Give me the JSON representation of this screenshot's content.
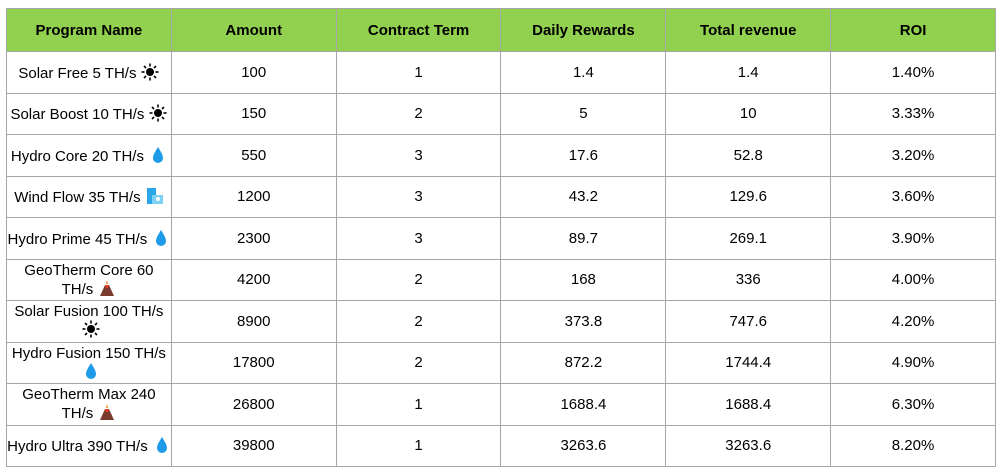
{
  "table": {
    "header": [
      "Program Name",
      "Amount",
      "Contract Term",
      "Daily Rewards",
      "Total revenue",
      "ROI"
    ],
    "rows": [
      [
        "Solar Free 5 TH/s",
        "100",
        "1",
        "1.4",
        "1.4",
        "1.40%"
      ],
      [
        "Solar Boost 10 TH/s",
        "150",
        "2",
        "5",
        "10",
        "3.33%"
      ],
      [
        "Hydro Core 20 TH/s",
        "550",
        "3",
        "17.6",
        "52.8",
        "3.20%"
      ],
      [
        "Wind Flow 35 TH/s",
        "1200",
        "3",
        "43.2",
        "129.6",
        "3.60%"
      ],
      [
        "Hydro Prime 45 TH/s",
        "2300",
        "3",
        "89.7",
        "269.1",
        "3.90%"
      ],
      [
        "GeoTherm Core 60 TH/s",
        "4200",
        "2",
        "168",
        "336",
        "4.00%"
      ],
      [
        "Solar Fusion 100 TH/s",
        "8900",
        "2",
        "373.8",
        "747.6",
        "4.20%"
      ],
      [
        "Hydro Fusion 150 TH/s",
        "17800",
        "2",
        "872.2",
        "1744.4",
        "4.90%"
      ],
      [
        "GeoTherm Max 240 TH/s",
        "26800",
        "1",
        "1688.4",
        "1688.4",
        "6.30%"
      ],
      [
        "Hydro Ultra 390 TH/s",
        "39800",
        "1",
        "3263.6",
        "3263.6",
        "8.20%"
      ]
    ]
  }
}
